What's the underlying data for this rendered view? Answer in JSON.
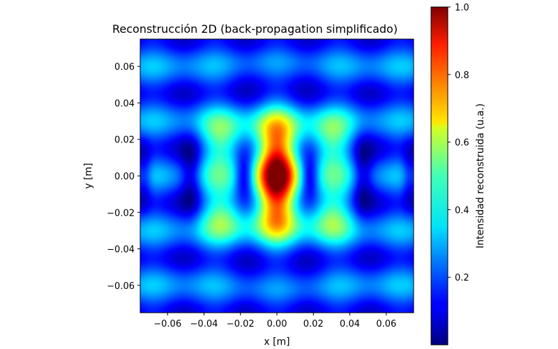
{
  "chart_data": {
    "type": "heatmap",
    "title": "Reconstrucción 2D (back-propagation simplificado)",
    "xlabel": "x [m]",
    "ylabel": "y [m]",
    "xlim": [
      -0.075,
      0.075
    ],
    "ylim": [
      -0.075,
      0.075
    ],
    "x_ticks": [
      -0.06,
      -0.04,
      -0.02,
      0.0,
      0.02,
      0.04,
      0.06
    ],
    "x_tick_labels": [
      "−0.06",
      "−0.04",
      "−0.02",
      "0.00",
      "0.02",
      "0.04",
      "0.06"
    ],
    "y_ticks": [
      0.06,
      0.04,
      0.02,
      0.0,
      -0.02,
      -0.04,
      -0.06
    ],
    "y_tick_labels": [
      "0.06",
      "0.04",
      "0.02",
      "0.00",
      "−0.02",
      "−0.04",
      "−0.06"
    ],
    "colorbar": {
      "label": "Intensidad reconstruida (u.a.)",
      "range": [
        0.0,
        1.0
      ],
      "ticks": [
        0.2,
        0.4,
        0.6,
        0.8,
        1.0
      ],
      "tick_labels": [
        "0.2",
        "0.4",
        "0.6",
        "0.8",
        "1.0"
      ],
      "colormap": "jet"
    },
    "grid": false,
    "field_description": "central elliptical peak of intensity 1.0 at (0,0), elongated in y; dark minima near x=±0.017 and x=±0.047 (y≈0); green side lobes (~0.45) at x≈±0.03; faint arcs above and below"
  }
}
